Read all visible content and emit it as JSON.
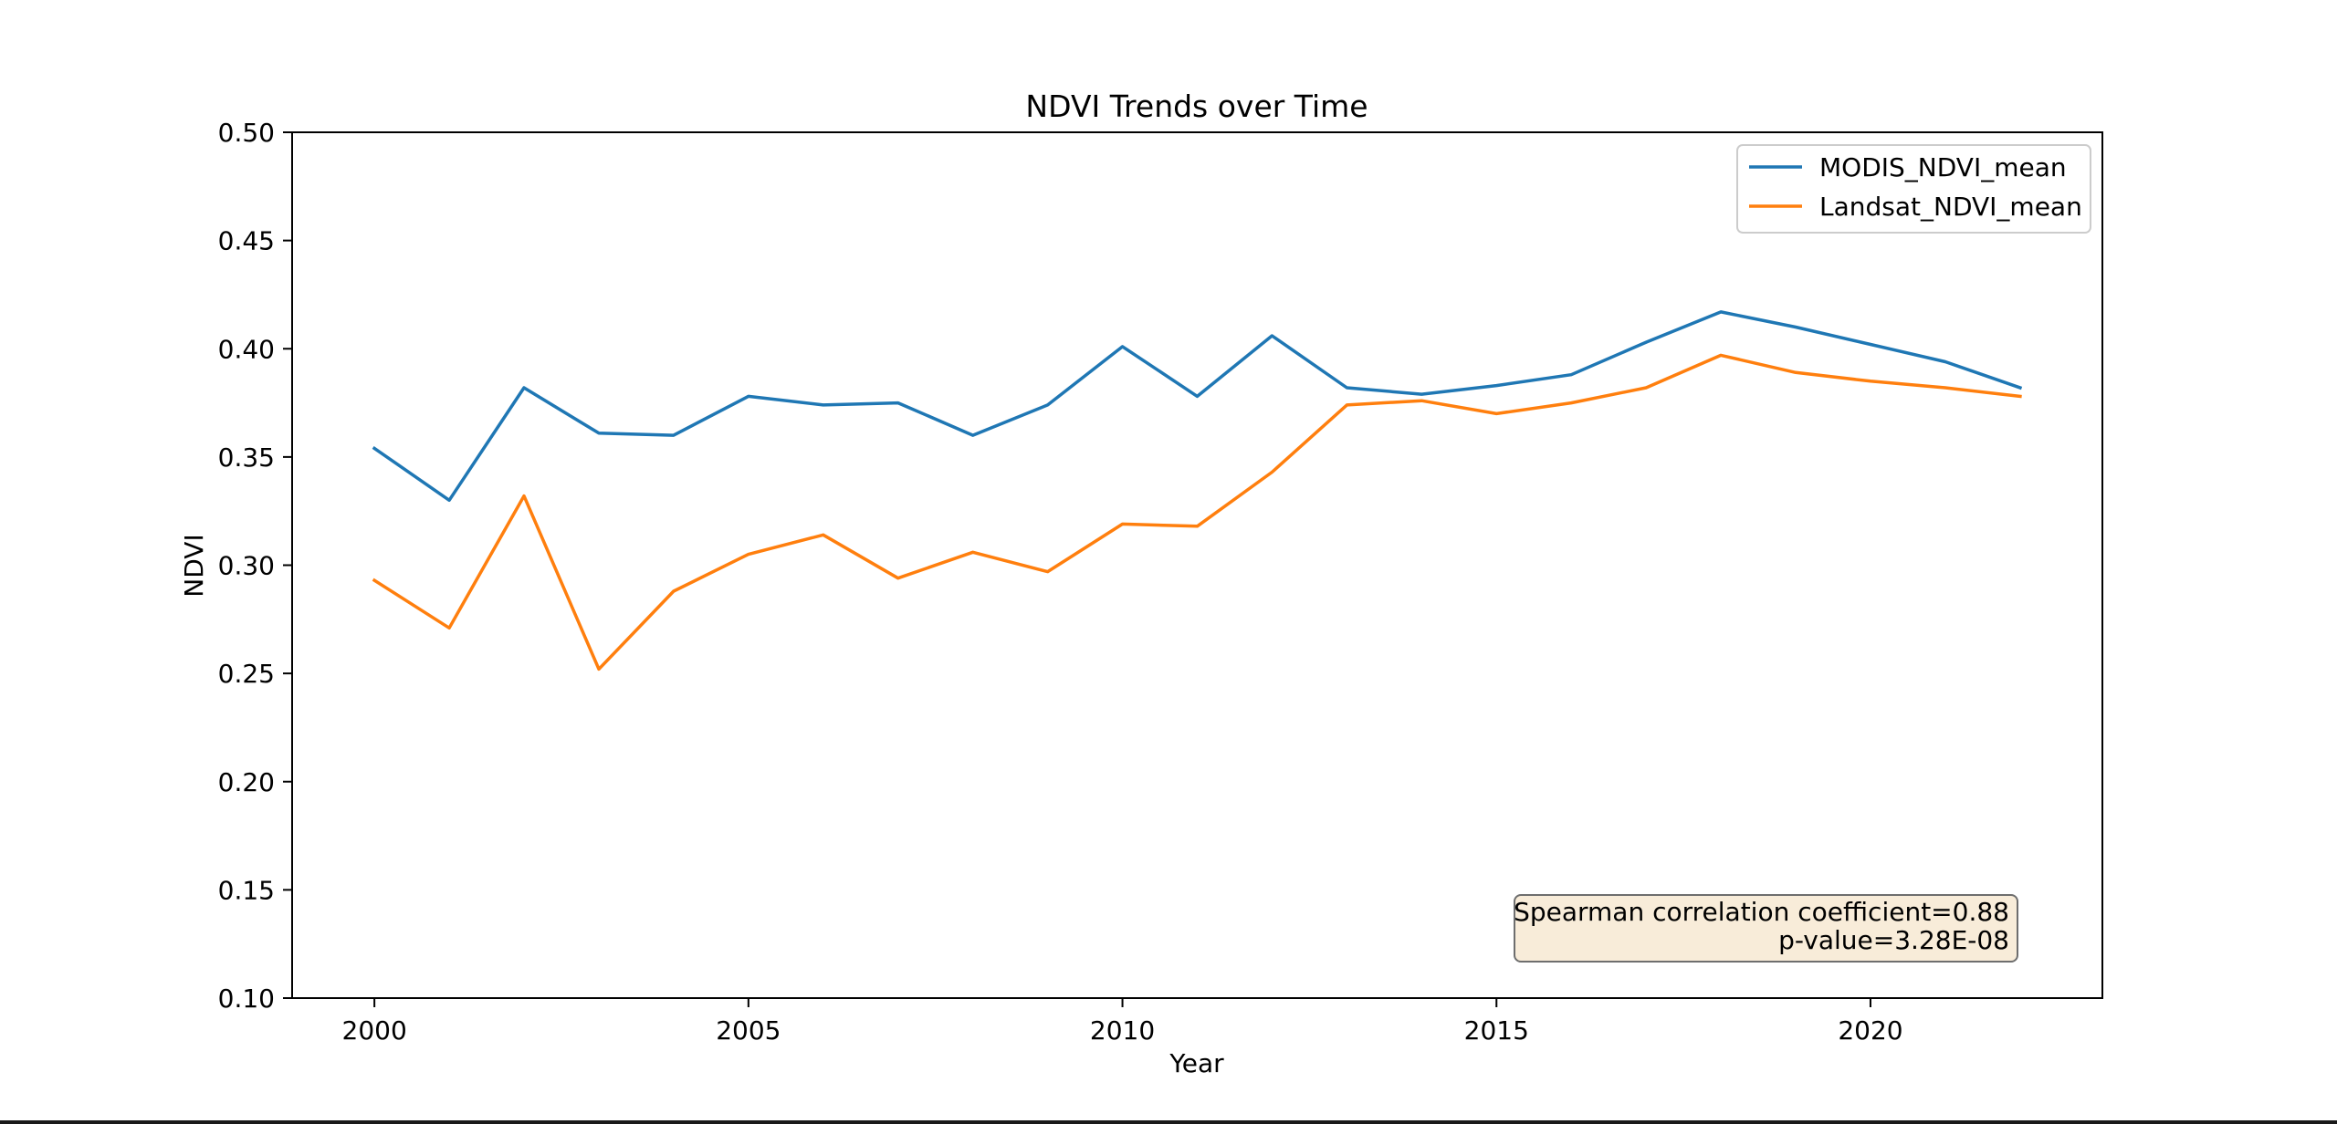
{
  "chart_data": {
    "type": "line",
    "title": "NDVI Trends over Time",
    "xlabel": "Year",
    "ylabel": "NDVI",
    "xlim": [
      1998.9,
      2023.1
    ],
    "ylim": [
      0.1,
      0.5
    ],
    "xticks": [
      2000,
      2005,
      2010,
      2015,
      2020
    ],
    "yticks": [
      0.1,
      0.15,
      0.2,
      0.25,
      0.3,
      0.35,
      0.4,
      0.45,
      0.5
    ],
    "x": [
      2000,
      2001,
      2002,
      2003,
      2004,
      2005,
      2006,
      2007,
      2008,
      2009,
      2010,
      2011,
      2012,
      2013,
      2014,
      2015,
      2016,
      2017,
      2018,
      2019,
      2020,
      2021,
      2022
    ],
    "series": [
      {
        "name": "MODIS_NDVI_mean",
        "color": "#1f77b4",
        "values": [
          0.354,
          0.33,
          0.382,
          0.361,
          0.36,
          0.378,
          0.374,
          0.375,
          0.36,
          0.374,
          0.401,
          0.378,
          0.406,
          0.382,
          0.379,
          0.383,
          0.388,
          0.403,
          0.417,
          0.41,
          0.402,
          0.394,
          0.382
        ]
      },
      {
        "name": "Landsat_NDVI_mean",
        "color": "#ff7f0e",
        "values": [
          0.293,
          0.271,
          0.332,
          0.252,
          0.288,
          0.305,
          0.314,
          0.294,
          0.306,
          0.297,
          0.319,
          0.318,
          0.343,
          0.374,
          0.376,
          0.37,
          0.375,
          0.382,
          0.397,
          0.389,
          0.385,
          0.382,
          0.378
        ]
      }
    ],
    "grid": false,
    "legend_position": "top-right",
    "annotation": {
      "line1": "Spearman correlation coefficient=0.88",
      "line2": "p-value=3.28E-08",
      "position": "bottom-right",
      "background": "#f8ecd9",
      "border": "#6e6e6e"
    }
  }
}
